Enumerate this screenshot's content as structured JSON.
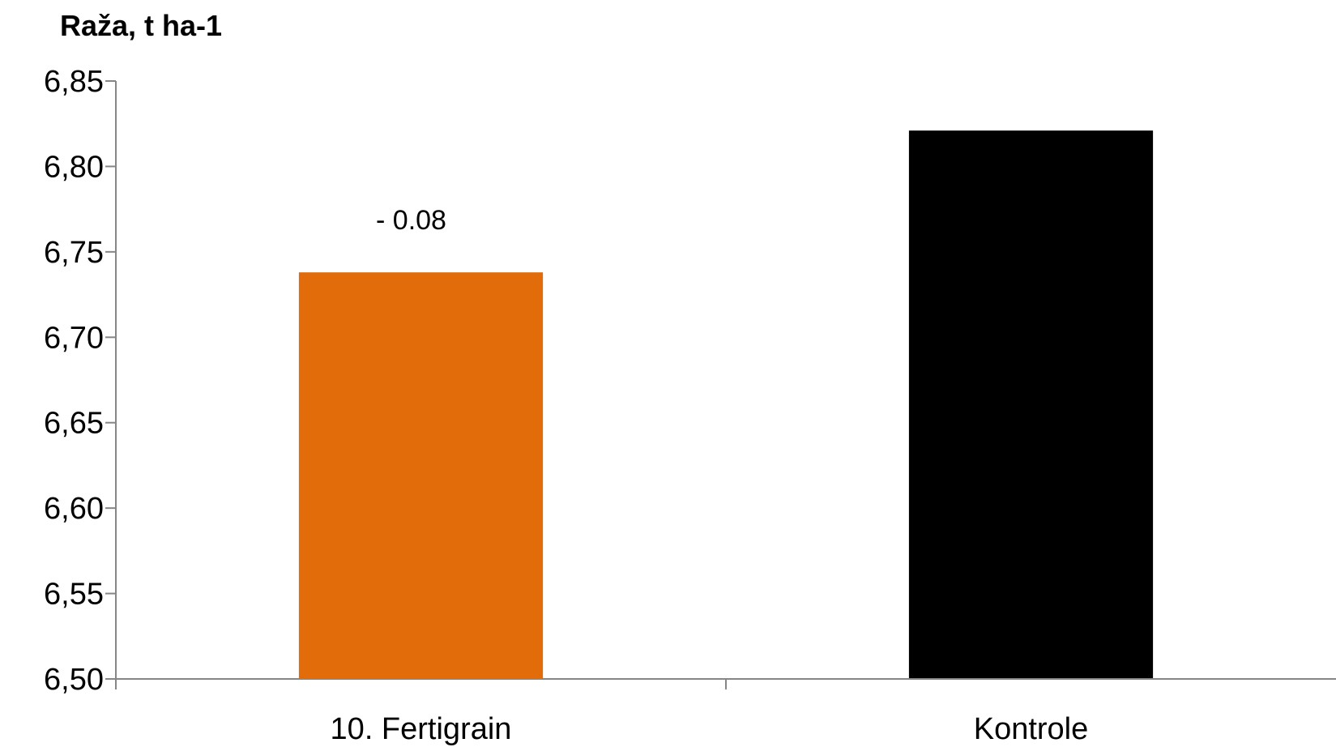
{
  "chart_data": {
    "type": "bar",
    "ylabel": "Raža, t ha-1",
    "categories": [
      "10. Fertigrain",
      "Kontrole"
    ],
    "values": [
      6.738,
      6.821
    ],
    "ylim": [
      6.5,
      6.85
    ],
    "yticks": [
      "6,50",
      "6,55",
      "6,60",
      "6,65",
      "6,70",
      "6,75",
      "6,80",
      "6,85"
    ],
    "ytick_values": [
      6.5,
      6.55,
      6.6,
      6.65,
      6.7,
      6.75,
      6.8,
      6.85
    ],
    "data_labels": [
      "- 0.08",
      ""
    ],
    "colors": [
      "#E36C0A",
      "#000000"
    ],
    "axis_color": "#868686",
    "grid": false,
    "legend": "none"
  }
}
